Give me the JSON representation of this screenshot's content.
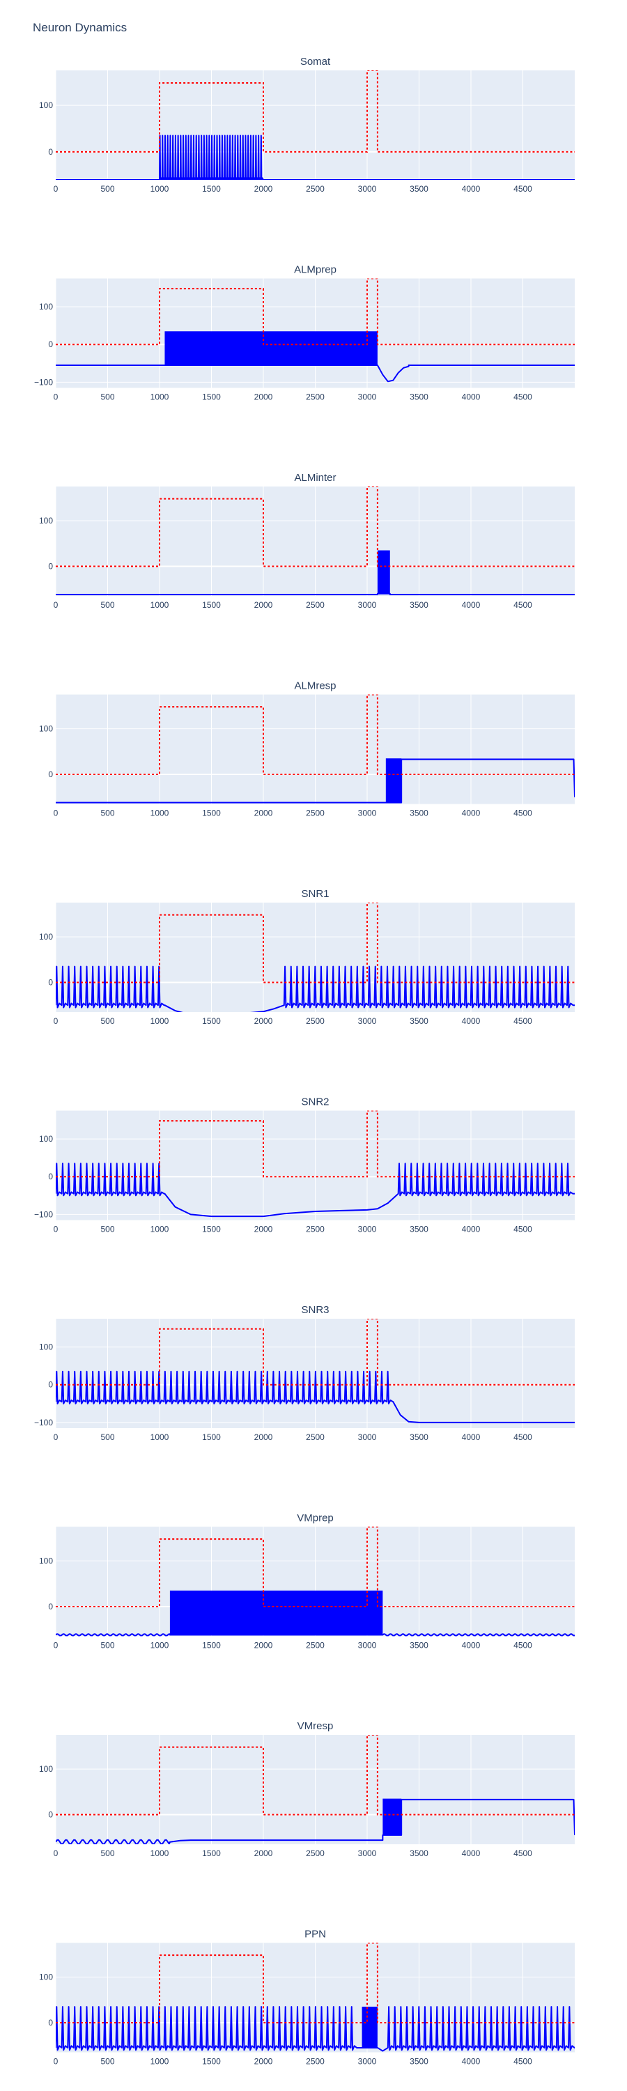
{
  "figure_title": "Neuron Dynamics",
  "colors": {
    "trace": "#0000ff",
    "stimulus": "#ff0000",
    "plot_bg": "#e5ecf6",
    "grid": "#ffffff",
    "text": "#2a3f5f"
  },
  "chart_data": [
    {
      "type": "line",
      "title": "Somat",
      "xlim": [
        0,
        5000
      ],
      "ylim": [
        -60,
        175
      ],
      "xticks": [
        0,
        500,
        1000,
        1500,
        2000,
        2500,
        3000,
        3500,
        4000,
        4500
      ],
      "yticks": [
        0,
        100
      ],
      "grid": true,
      "trace": {
        "baseline": -60,
        "segments": [
          {
            "x": [
              1000,
              2000
            ],
            "mode": "spikes",
            "low": -60,
            "high": 35,
            "period": 25
          }
        ]
      },
      "stimulus": [
        [
          0,
          0
        ],
        [
          1000,
          0
        ],
        [
          1000,
          148
        ],
        [
          2000,
          148
        ],
        [
          2000,
          0
        ],
        [
          3000,
          0
        ],
        [
          3000,
          175
        ],
        [
          3100,
          175
        ],
        [
          3100,
          0
        ],
        [
          5000,
          0
        ]
      ]
    },
    {
      "type": "line",
      "title": "ALMprep",
      "xlim": [
        0,
        5000
      ],
      "ylim": [
        -115,
        175
      ],
      "xticks": [
        0,
        500,
        1000,
        1500,
        2000,
        2500,
        3000,
        3500,
        4000,
        4500
      ],
      "yticks": [
        -100,
        0,
        100
      ],
      "grid": true,
      "trace": {
        "baseline": -55,
        "segments": [
          {
            "x": [
              1050,
              3100
            ],
            "mode": "band",
            "low": -55,
            "high": 35
          },
          {
            "x": [
              3100,
              3400
            ],
            "mode": "curve",
            "points": [
              [
                3100,
                -55
              ],
              [
                3150,
                -80
              ],
              [
                3200,
                -98
              ],
              [
                3250,
                -95
              ],
              [
                3300,
                -75
              ],
              [
                3350,
                -62
              ],
              [
                3400,
                -58
              ]
            ]
          }
        ]
      },
      "stimulus": [
        [
          0,
          0
        ],
        [
          1000,
          0
        ],
        [
          1000,
          148
        ],
        [
          2000,
          148
        ],
        [
          2000,
          0
        ],
        [
          3000,
          0
        ],
        [
          3000,
          175
        ],
        [
          3100,
          175
        ],
        [
          3100,
          0
        ],
        [
          5000,
          0
        ]
      ]
    },
    {
      "type": "line",
      "title": "ALMinter",
      "xlim": [
        0,
        5000
      ],
      "ylim": [
        -65,
        175
      ],
      "xticks": [
        0,
        500,
        1000,
        1500,
        2000,
        2500,
        3000,
        3500,
        4000,
        4500
      ],
      "yticks": [
        0,
        100
      ],
      "grid": true,
      "trace": {
        "baseline": -62,
        "segments": [
          {
            "x": [
              3100,
              3220
            ],
            "mode": "band",
            "low": -60,
            "high": 35
          }
        ]
      },
      "stimulus": [
        [
          0,
          0
        ],
        [
          1000,
          0
        ],
        [
          1000,
          148
        ],
        [
          2000,
          148
        ],
        [
          2000,
          0
        ],
        [
          3000,
          0
        ],
        [
          3000,
          175
        ],
        [
          3100,
          175
        ],
        [
          3100,
          0
        ],
        [
          5000,
          0
        ]
      ]
    },
    {
      "type": "line",
      "title": "ALMresp",
      "xlim": [
        0,
        5000
      ],
      "ylim": [
        -65,
        175
      ],
      "xticks": [
        0,
        500,
        1000,
        1500,
        2000,
        2500,
        3000,
        3500,
        4000,
        4500
      ],
      "yticks": [
        0,
        100
      ],
      "grid": true,
      "trace": {
        "baseline": -62,
        "segments": [
          {
            "x": [
              3180,
              3330
            ],
            "mode": "band",
            "low": -62,
            "high": 35
          },
          {
            "x": [
              3330,
              4990
            ],
            "mode": "flat",
            "level": 33
          },
          {
            "x": [
              4990,
              5000
            ],
            "mode": "curve",
            "points": [
              [
                4990,
                33
              ],
              [
                5000,
                -50
              ]
            ]
          }
        ]
      },
      "stimulus": [
        [
          0,
          0
        ],
        [
          1000,
          0
        ],
        [
          1000,
          148
        ],
        [
          2000,
          148
        ],
        [
          2000,
          0
        ],
        [
          3000,
          0
        ],
        [
          3000,
          175
        ],
        [
          3100,
          175
        ],
        [
          3100,
          0
        ],
        [
          5000,
          0
        ]
      ]
    },
    {
      "type": "line",
      "title": "SNR1",
      "xlim": [
        0,
        5000
      ],
      "ylim": [
        -65,
        175
      ],
      "xticks": [
        0,
        500,
        1000,
        1500,
        2000,
        2500,
        3000,
        3500,
        4000,
        4500
      ],
      "yticks": [
        0,
        100
      ],
      "grid": true,
      "trace": {
        "baseline": -50,
        "segments": [
          {
            "x": [
              0,
              1050
            ],
            "mode": "spikes",
            "low": -50,
            "high": 35,
            "period": 58
          },
          {
            "x": [
              1050,
              2200
            ],
            "mode": "curve",
            "points": [
              [
                1050,
                -50
              ],
              [
                1150,
                -62
              ],
              [
                1250,
                -68
              ],
              [
                1800,
                -68
              ],
              [
                2000,
                -64
              ],
              [
                2100,
                -58
              ],
              [
                2200,
                -50
              ]
            ]
          },
          {
            "x": [
              2200,
              5000
            ],
            "mode": "spikes",
            "low": -50,
            "high": 35,
            "period": 58
          }
        ]
      },
      "stimulus": [
        [
          0,
          0
        ],
        [
          1000,
          0
        ],
        [
          1000,
          148
        ],
        [
          2000,
          148
        ],
        [
          2000,
          0
        ],
        [
          3000,
          0
        ],
        [
          3000,
          175
        ],
        [
          3100,
          175
        ],
        [
          3100,
          0
        ],
        [
          5000,
          0
        ]
      ]
    },
    {
      "type": "line",
      "title": "SNR2",
      "xlim": [
        0,
        5000
      ],
      "ylim": [
        -115,
        175
      ],
      "xticks": [
        0,
        500,
        1000,
        1500,
        2000,
        2500,
        3000,
        3500,
        4000,
        4500
      ],
      "yticks": [
        -100,
        0,
        100
      ],
      "grid": true,
      "trace": {
        "baseline": -45,
        "segments": [
          {
            "x": [
              0,
              1050
            ],
            "mode": "spikes",
            "low": -45,
            "high": 35,
            "period": 58
          },
          {
            "x": [
              1050,
              3300
            ],
            "mode": "curve",
            "points": [
              [
                1050,
                -45
              ],
              [
                1150,
                -80
              ],
              [
                1300,
                -100
              ],
              [
                1500,
                -105
              ],
              [
                2000,
                -105
              ],
              [
                2200,
                -98
              ],
              [
                2500,
                -92
              ],
              [
                3000,
                -88
              ],
              [
                3100,
                -85
              ],
              [
                3200,
                -70
              ],
              [
                3300,
                -45
              ]
            ]
          },
          {
            "x": [
              3300,
              5000
            ],
            "mode": "spikes",
            "low": -45,
            "high": 35,
            "period": 58
          }
        ]
      },
      "stimulus": [
        [
          0,
          0
        ],
        [
          1000,
          0
        ],
        [
          1000,
          148
        ],
        [
          2000,
          148
        ],
        [
          2000,
          0
        ],
        [
          3000,
          0
        ],
        [
          3000,
          175
        ],
        [
          3100,
          175
        ],
        [
          3100,
          0
        ],
        [
          5000,
          0
        ]
      ]
    },
    {
      "type": "line",
      "title": "SNR3",
      "xlim": [
        0,
        5000
      ],
      "ylim": [
        -115,
        175
      ],
      "xticks": [
        0,
        500,
        1000,
        1500,
        2000,
        2500,
        3000,
        3500,
        4000,
        4500
      ],
      "yticks": [
        -100,
        0,
        100
      ],
      "grid": true,
      "trace": {
        "baseline": -45,
        "segments": [
          {
            "x": [
              0,
              3250
            ],
            "mode": "spikes",
            "low": -45,
            "high": 35,
            "period": 58
          },
          {
            "x": [
              3250,
              5000
            ],
            "mode": "curve",
            "points": [
              [
                3250,
                -45
              ],
              [
                3320,
                -80
              ],
              [
                3400,
                -98
              ],
              [
                3500,
                -100
              ],
              [
                5000,
                -100
              ]
            ]
          }
        ]
      },
      "stimulus": [
        [
          0,
          0
        ],
        [
          1000,
          0
        ],
        [
          1000,
          148
        ],
        [
          2000,
          148
        ],
        [
          2000,
          0
        ],
        [
          3000,
          0
        ],
        [
          3000,
          175
        ],
        [
          3100,
          175
        ],
        [
          3100,
          0
        ],
        [
          5000,
          0
        ]
      ]
    },
    {
      "type": "line",
      "title": "VMprep",
      "xlim": [
        0,
        5000
      ],
      "ylim": [
        -65,
        175
      ],
      "xticks": [
        0,
        500,
        1000,
        1500,
        2000,
        2500,
        3000,
        3500,
        4000,
        4500
      ],
      "yticks": [
        0,
        100
      ],
      "grid": true,
      "trace": {
        "baseline": -62,
        "segments": [
          {
            "x": [
              0,
              1100
            ],
            "mode": "ripple",
            "level": -62,
            "amp": 2,
            "period": 60
          },
          {
            "x": [
              1100,
              3150
            ],
            "mode": "band",
            "low": -62,
            "high": 35
          },
          {
            "x": [
              3150,
              5000
            ],
            "mode": "ripple",
            "level": -62,
            "amp": 2,
            "period": 60
          }
        ]
      },
      "stimulus": [
        [
          0,
          0
        ],
        [
          1000,
          0
        ],
        [
          1000,
          148
        ],
        [
          2000,
          148
        ],
        [
          2000,
          0
        ],
        [
          3000,
          0
        ],
        [
          3000,
          175
        ],
        [
          3100,
          175
        ],
        [
          3100,
          0
        ],
        [
          5000,
          0
        ]
      ]
    },
    {
      "type": "line",
      "title": "VMresp",
      "xlim": [
        0,
        5000
      ],
      "ylim": [
        -65,
        175
      ],
      "xticks": [
        0,
        500,
        1000,
        1500,
        2000,
        2500,
        3000,
        3500,
        4000,
        4500
      ],
      "yticks": [
        0,
        100
      ],
      "grid": true,
      "trace": {
        "baseline": -62,
        "segments": [
          {
            "x": [
              0,
              1100
            ],
            "mode": "ripple",
            "level": -60,
            "amp": 5,
            "period": 80
          },
          {
            "x": [
              1100,
              3150
            ],
            "mode": "curve",
            "points": [
              [
                1100,
                -60
              ],
              [
                1200,
                -57
              ],
              [
                1300,
                -56
              ],
              [
                3150,
                -56
              ]
            ]
          },
          {
            "x": [
              3150,
              3330
            ],
            "mode": "band",
            "low": -45,
            "high": 35
          },
          {
            "x": [
              3330,
              4990
            ],
            "mode": "flat",
            "level": 33
          },
          {
            "x": [
              4990,
              5000
            ],
            "mode": "curve",
            "points": [
              [
                4990,
                33
              ],
              [
                5000,
                -45
              ]
            ]
          }
        ]
      },
      "stimulus": [
        [
          0,
          0
        ],
        [
          1000,
          0
        ],
        [
          1000,
          148
        ],
        [
          2000,
          148
        ],
        [
          2000,
          0
        ],
        [
          3000,
          0
        ],
        [
          3000,
          175
        ],
        [
          3100,
          175
        ],
        [
          3100,
          0
        ],
        [
          5000,
          0
        ]
      ]
    },
    {
      "type": "line",
      "title": "PPN",
      "xlim": [
        0,
        5000
      ],
      "ylim": [
        -65,
        175
      ],
      "xticks": [
        0,
        500,
        1000,
        1500,
        2000,
        2500,
        3000,
        3500,
        4000,
        4500
      ],
      "yticks": [
        0,
        100
      ],
      "grid": true,
      "trace": {
        "baseline": -55,
        "segments": [
          {
            "x": [
              0,
              2950
            ],
            "mode": "spikes",
            "low": -55,
            "high": 35,
            "period": 58
          },
          {
            "x": [
              2950,
              3100
            ],
            "mode": "band",
            "low": -55,
            "high": 35
          },
          {
            "x": [
              3100,
              3200
            ],
            "mode": "curve",
            "points": [
              [
                3100,
                -55
              ],
              [
                3150,
                -62
              ],
              [
                3200,
                -55
              ]
            ]
          },
          {
            "x": [
              3200,
              5000
            ],
            "mode": "spikes",
            "low": -55,
            "high": 35,
            "period": 58
          }
        ]
      },
      "stimulus": [
        [
          0,
          0
        ],
        [
          1000,
          0
        ],
        [
          1000,
          148
        ],
        [
          2000,
          148
        ],
        [
          2000,
          0
        ],
        [
          3000,
          0
        ],
        [
          3000,
          175
        ],
        [
          3100,
          175
        ],
        [
          3100,
          0
        ],
        [
          5000,
          0
        ]
      ]
    }
  ]
}
